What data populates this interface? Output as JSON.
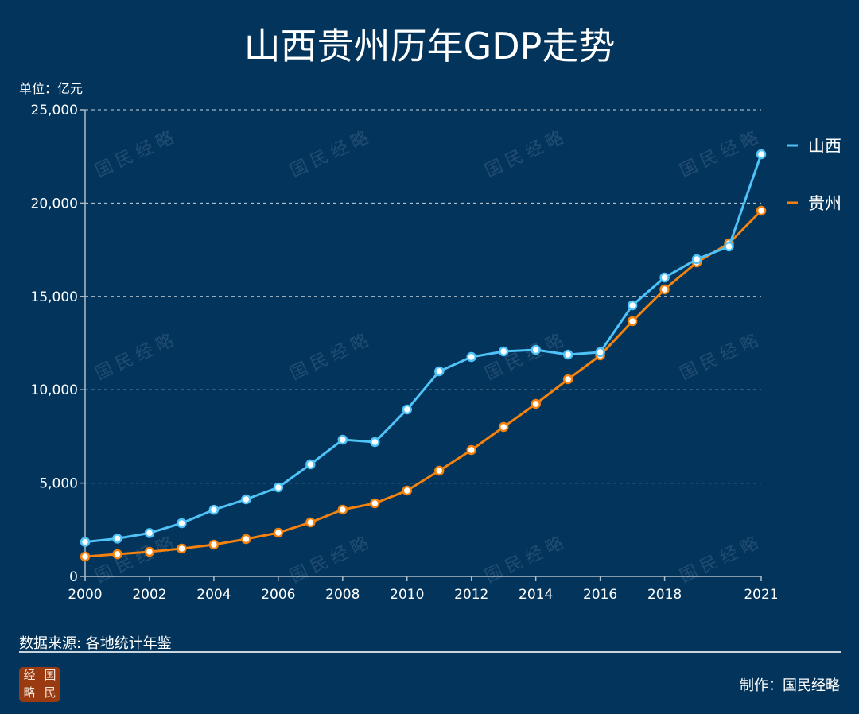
{
  "title": "山西贵州历年GDP走势",
  "unit_label": "单位：亿元",
  "source": "数据来源: 各地统计年鉴",
  "credit": "制作：国民经略",
  "logo_text": [
    "经",
    "国",
    "略",
    "民"
  ],
  "watermark": "国民经略",
  "chart_data": {
    "type": "line",
    "title": "山西贵州历年GDP走势",
    "ylabel": "单位：亿元",
    "ylim": [
      0,
      25000
    ],
    "yticks": [
      0,
      5000,
      10000,
      15000,
      20000,
      25000
    ],
    "ytick_labels": [
      "0",
      "5,000",
      "10,000",
      "15,000",
      "20,000",
      "25,000"
    ],
    "xlim": [
      2000,
      2021
    ],
    "xticks": [
      2000,
      2002,
      2004,
      2006,
      2008,
      2010,
      2012,
      2014,
      2016,
      2018,
      2021
    ],
    "grid": "horizontal dashed",
    "legend": "right",
    "x": [
      2000,
      2001,
      2002,
      2003,
      2004,
      2005,
      2006,
      2007,
      2008,
      2009,
      2010,
      2011,
      2012,
      2013,
      2014,
      2015,
      2016,
      2017,
      2018,
      2019,
      2020,
      2021
    ],
    "series": [
      {
        "name": "山西",
        "color": "#4fc3f7",
        "values": [
          1846,
          2030,
          2325,
          2855,
          3571,
          4131,
          4770,
          6005,
          7325,
          7197,
          8944,
          10988,
          11755,
          12053,
          12138,
          11882,
          12010,
          14523,
          16013,
          16993,
          17675,
          22615
        ]
      },
      {
        "name": "贵州",
        "color": "#f5820d",
        "values": [
          1065,
          1192,
          1320,
          1490,
          1704,
          2002,
          2342,
          2896,
          3578,
          3918,
          4600,
          5664,
          6772,
          8007,
          9242,
          10562,
          11840,
          13671,
          15375,
          16823,
          17845,
          19591
        ]
      }
    ]
  }
}
